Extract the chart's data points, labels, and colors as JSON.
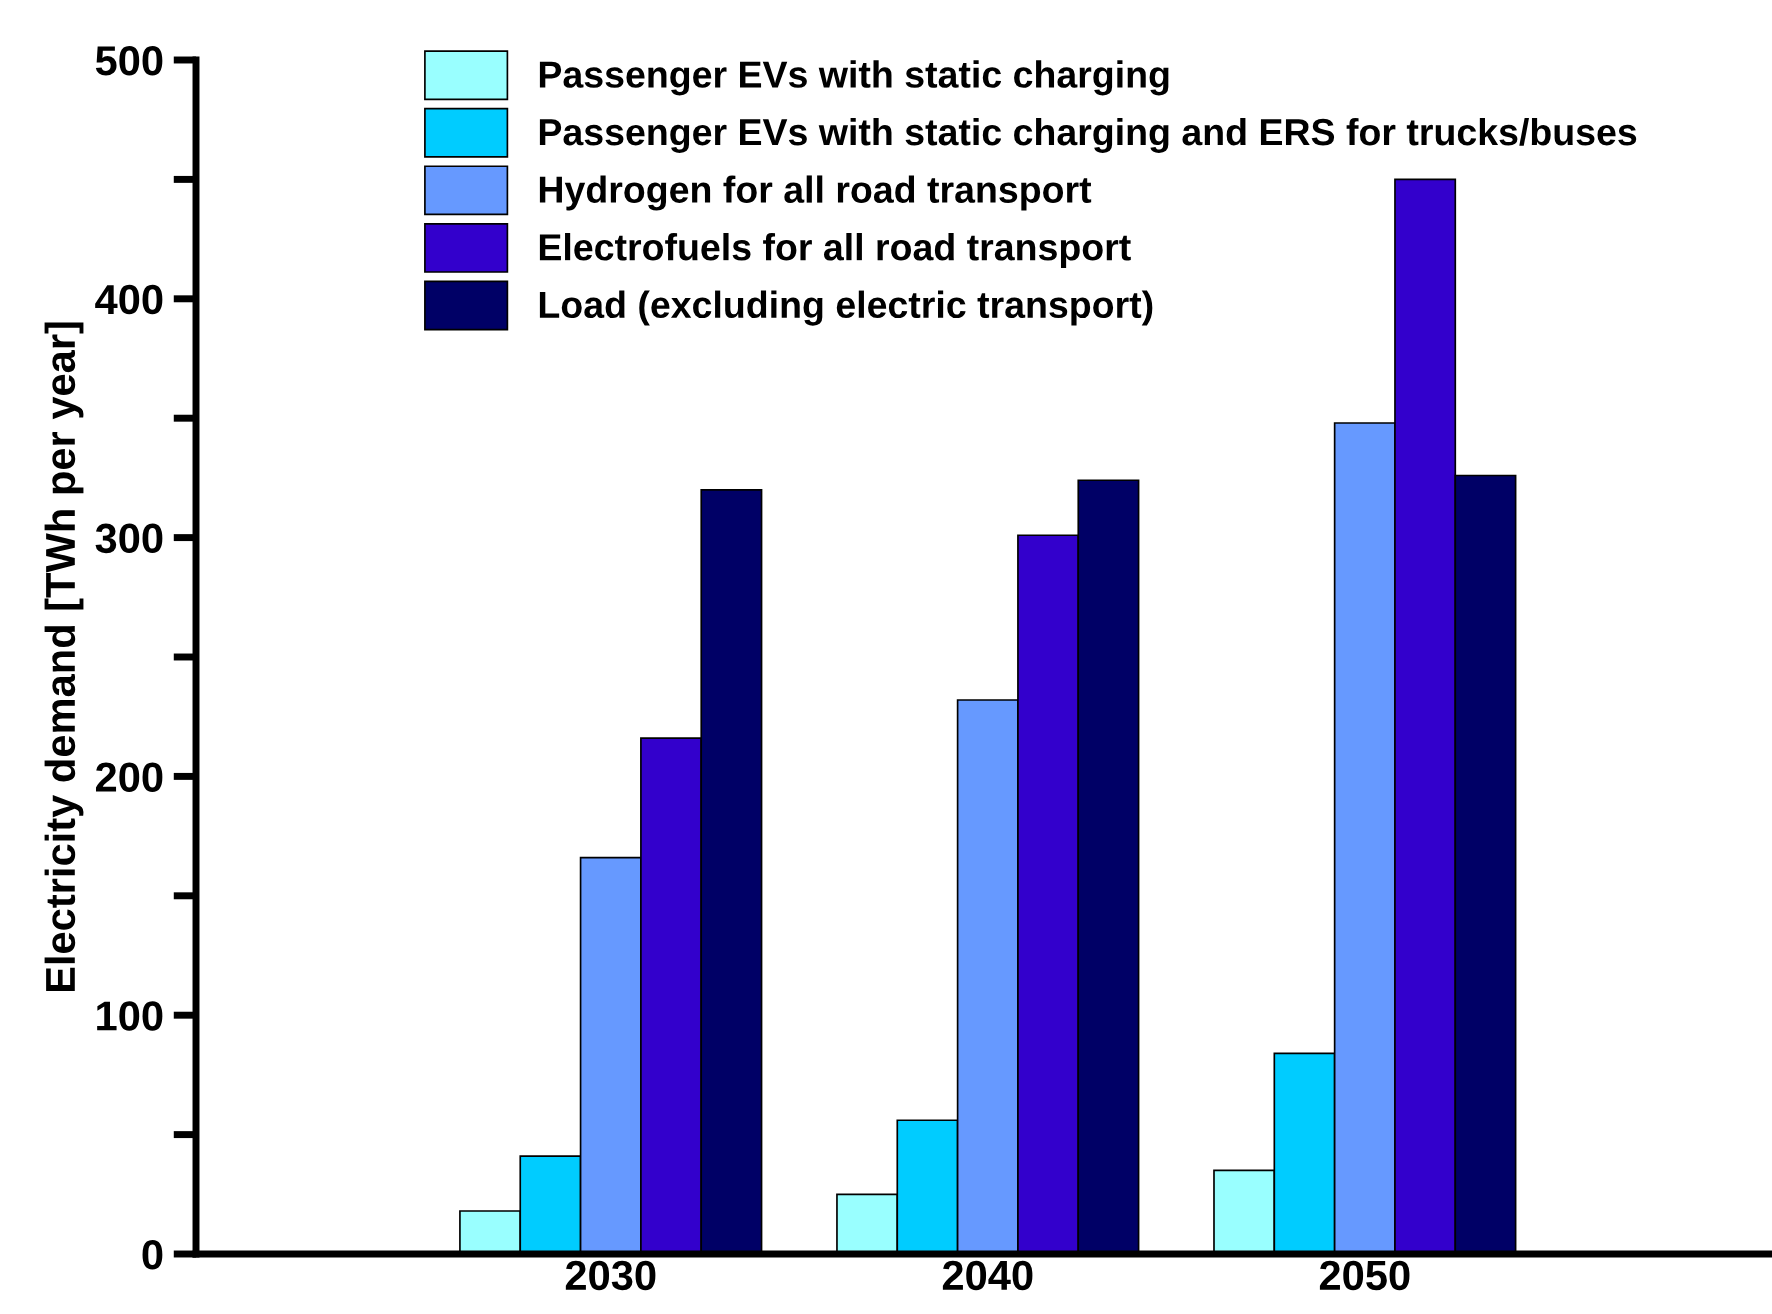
{
  "chart_data": {
    "type": "bar",
    "ylabel": "Electricity demand [TWh per year]",
    "categories": [
      "2030",
      "2040",
      "2050"
    ],
    "series": [
      {
        "name": "Passenger EVs with static charging",
        "color": "#99ffff",
        "values": [
          18,
          25,
          35
        ]
      },
      {
        "name": "Passenger EVs with static charging and ERS for trucks/buses",
        "color": "#00ccff",
        "values": [
          41,
          56,
          84
        ]
      },
      {
        "name": "Hydrogen for all road transport",
        "color": "#6699ff",
        "values": [
          166,
          232,
          348
        ]
      },
      {
        "name": "Electrofuels for all road transport",
        "color": "#3300cc",
        "values": [
          216,
          301,
          450
        ]
      },
      {
        "name": "Load (excluding electric transport)",
        "color": "#000066",
        "values": [
          320,
          324,
          326
        ]
      }
    ],
    "ylim": [
      0,
      500
    ],
    "yticks": [
      0,
      {
        "value": 50,
        "label": null
      },
      100,
      {
        "value": 150,
        "label": null
      },
      200,
      {
        "value": 250,
        "label": null
      },
      300,
      {
        "value": 350,
        "label": null
      },
      400,
      {
        "value": 450,
        "label": null
      },
      500
    ],
    "legend": "top",
    "grid": false
  }
}
